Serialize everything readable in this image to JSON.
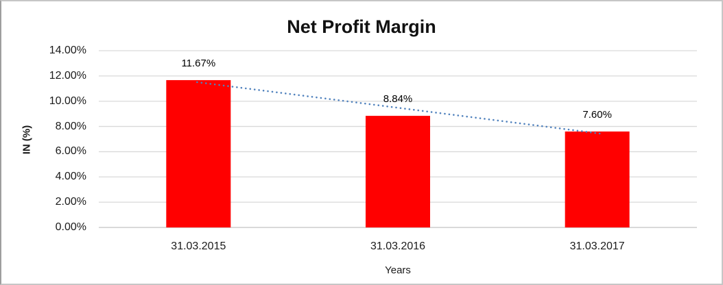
{
  "frame": {
    "background": "#ffffff",
    "border_color": "#c6c6c6"
  },
  "chart_data": {
    "type": "bar",
    "title": "Net Profit Margin",
    "xlabel": "Years",
    "ylabel": "IN (%)",
    "categories": [
      "31.03.2015",
      "31.03.2016",
      "31.03.2017"
    ],
    "series": [
      {
        "name": "Net Profit Margin",
        "values": [
          11.67,
          8.84,
          7.6
        ]
      }
    ],
    "data_labels": [
      "11.67%",
      "8.84%",
      "7.60%"
    ],
    "ylim": [
      0,
      14
    ],
    "ytick_step": 2,
    "ytick_labels": [
      "0.00%",
      "2.00%",
      "4.00%",
      "6.00%",
      "8.00%",
      "10.00%",
      "12.00%",
      "14.00%"
    ],
    "grid": true,
    "legend": "none",
    "bar_color": "#ff0000",
    "gridline_color": "#d9d9d9",
    "axis_line_color": "#c2c2c2",
    "text_color": "#1a1a1a",
    "trendline": {
      "type": "linear",
      "line_style": "dotted",
      "color": "#4f81bd",
      "start_value": 11.67,
      "end_value": 7.6
    }
  }
}
